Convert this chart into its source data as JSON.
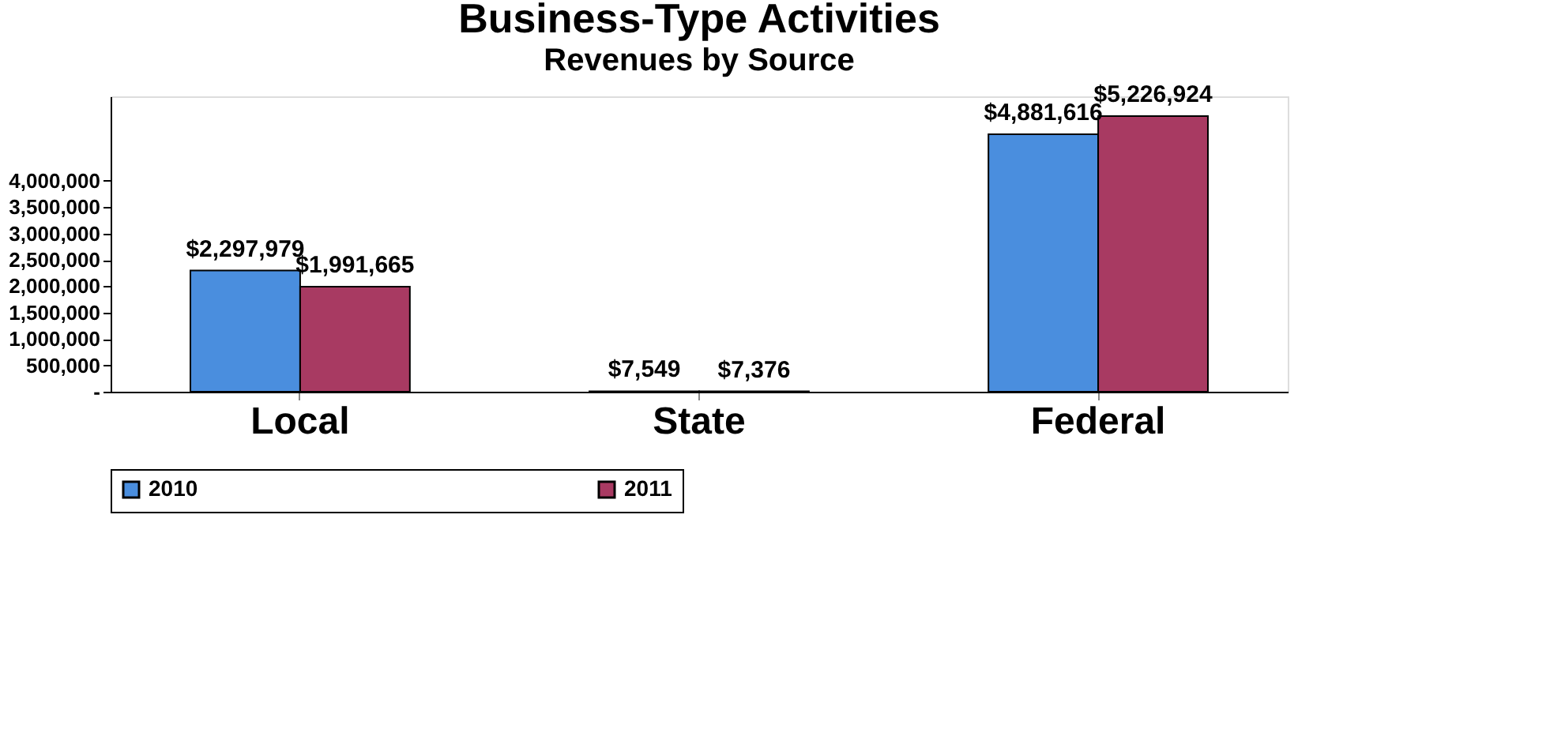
{
  "chart_data": {
    "type": "bar",
    "title": "Business-Type Activities",
    "subtitle": "Revenues by Source",
    "categories": [
      "Local",
      "State",
      "Federal"
    ],
    "series": [
      {
        "name": "2010",
        "color": "#4a8ede",
        "values": [
          2297979,
          7549,
          4881616
        ],
        "value_labels": [
          "$2,297,979",
          "$7,549",
          "$4,881,616"
        ]
      },
      {
        "name": "2011",
        "color": "#a83a62",
        "values": [
          1991665,
          7376,
          5226924
        ],
        "value_labels": [
          "$1,991,665",
          "$7,376",
          "$5,226,924"
        ]
      }
    ],
    "ylim": [
      0,
      5600000
    ],
    "yticks": [
      {
        "value": 0,
        "label": "-"
      },
      {
        "value": 500000,
        "label": "500,000"
      },
      {
        "value": 1000000,
        "label": "1,000,000"
      },
      {
        "value": 1500000,
        "label": "1,500,000"
      },
      {
        "value": 2000000,
        "label": "2,000,000"
      },
      {
        "value": 2500000,
        "label": "2,500,000"
      },
      {
        "value": 3000000,
        "label": "3,000,000"
      },
      {
        "value": 3500000,
        "label": "3,500,000"
      },
      {
        "value": 4000000,
        "label": "4,000,000"
      }
    ],
    "grid": false,
    "legend": "bottom"
  }
}
